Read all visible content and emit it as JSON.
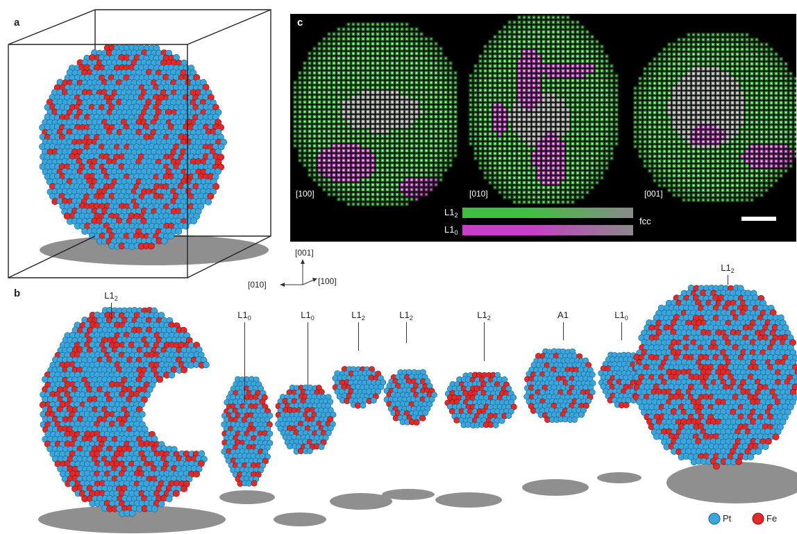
{
  "panel_labels": {
    "a": "a",
    "b": "b",
    "c": "c"
  },
  "axes": {
    "z": "[001]",
    "y": "[010]",
    "x": "[100]"
  },
  "panel_b_segments": [
    {
      "base": "L1",
      "sub": "2"
    },
    {
      "base": "L1",
      "sub": "0"
    },
    {
      "base": "L1",
      "sub": "0"
    },
    {
      "base": "L1",
      "sub": "2"
    },
    {
      "base": "L1",
      "sub": "2"
    },
    {
      "base": "L1",
      "sub": "2"
    },
    {
      "base": "A1",
      "sub": ""
    },
    {
      "base": "L1",
      "sub": "0"
    },
    {
      "base": "L1",
      "sub": "2"
    }
  ],
  "panel_c": {
    "views": [
      "[100]",
      "[010]",
      "[001]"
    ],
    "legend": [
      {
        "base": "L1",
        "sub": "2",
        "color": "#3fbf3f"
      },
      {
        "base": "L1",
        "sub": "0",
        "color": "#c63fc6"
      }
    ],
    "legend_end": "fcc",
    "scalebar": "scale-bar"
  },
  "atom_key": [
    {
      "label": "Pt",
      "color": "#3aa6dd"
    },
    {
      "label": "Fe",
      "color": "#e02a2a"
    }
  ],
  "colors": {
    "pt": "#3aa6dd",
    "fe": "#e02a2a",
    "shadow": "#8f8f8f",
    "box": "#222222"
  }
}
